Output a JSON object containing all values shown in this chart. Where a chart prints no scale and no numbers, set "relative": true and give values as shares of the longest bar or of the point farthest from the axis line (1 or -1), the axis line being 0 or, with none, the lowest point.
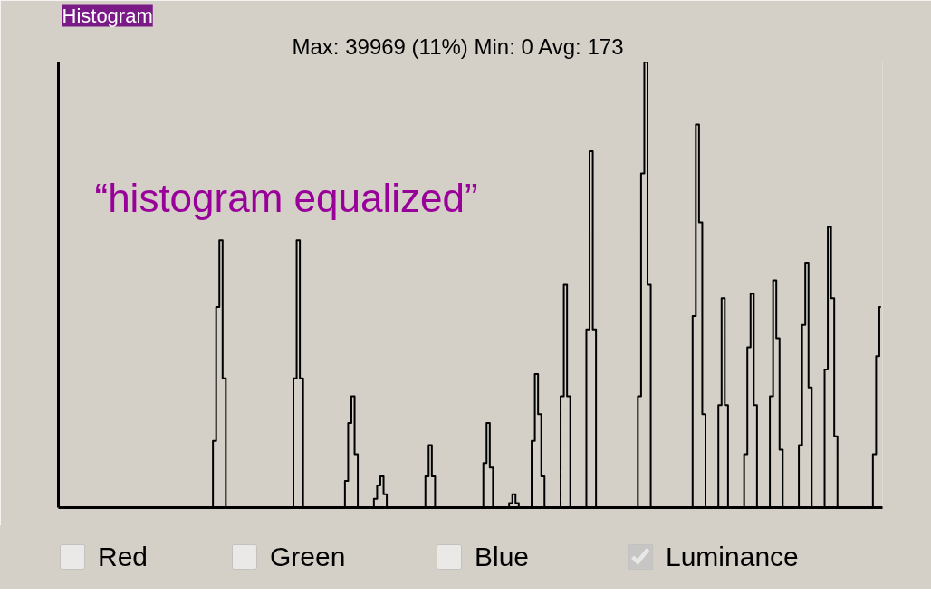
{
  "chart_data": {
    "type": "step",
    "title": "Histogram",
    "subtitle": "Max: 39969 (11%)   Min: 0   Avg: 173",
    "annotations": [
      "“histogram equalized”",
      "Red",
      "Green",
      "Blue"
    ],
    "relative": true,
    "tick_labels": false,
    "grid": false,
    "legend": "bottom",
    "categories": [
      null,
      null,
      null,
      null,
      null,
      null,
      null,
      null,
      null,
      null,
      null,
      null,
      null,
      null,
      null,
      null,
      null,
      null,
      null,
      null,
      null,
      null,
      null,
      null,
      null,
      null,
      null,
      null,
      null,
      null,
      null,
      null,
      null,
      null,
      null,
      null,
      null,
      null,
      null,
      null,
      null,
      null,
      null,
      null,
      null,
      null,
      null,
      null,
      null,
      null,
      null,
      null,
      null,
      null,
      null,
      null,
      null,
      null,
      null,
      null,
      null,
      null,
      null,
      null,
      null,
      null,
      null,
      null,
      null,
      null,
      null,
      null,
      null,
      null,
      null,
      null,
      null,
      null,
      null,
      null,
      null,
      null,
      null,
      null,
      null,
      null,
      null,
      null,
      null,
      null,
      null,
      null,
      null,
      null,
      null,
      null,
      null,
      null,
      null,
      null,
      null,
      null,
      null,
      null,
      null,
      null,
      null,
      null,
      null,
      null,
      null,
      null,
      null,
      null,
      null,
      null,
      null,
      null,
      null,
      null,
      null,
      null,
      null,
      null,
      null,
      null,
      null,
      null,
      null,
      null,
      null,
      null,
      null,
      null,
      null,
      null,
      null,
      null,
      null,
      null,
      null,
      null,
      null,
      null,
      null,
      null,
      null,
      null,
      null,
      null,
      null,
      null,
      null,
      null,
      null,
      null,
      null,
      null,
      null,
      null,
      null,
      null,
      null,
      null,
      null,
      null,
      null,
      null,
      null,
      null,
      null,
      null,
      null,
      null,
      null,
      null,
      null,
      null,
      null,
      null,
      null,
      null,
      null,
      null,
      null,
      null,
      null,
      null,
      null,
      null,
      null,
      null,
      null,
      null,
      null,
      null,
      null,
      null,
      null,
      null,
      null,
      null,
      null,
      null,
      null,
      null,
      null,
      null,
      null,
      null,
      null,
      null,
      null,
      null,
      null,
      null,
      null,
      null,
      null,
      null,
      null,
      null,
      null,
      null,
      null,
      null,
      null,
      null,
      null,
      null,
      null,
      null,
      null,
      null,
      null,
      null,
      null,
      null,
      null,
      null,
      null,
      null,
      null,
      null,
      null,
      null,
      null,
      null,
      null,
      null,
      null,
      null,
      null,
      null,
      null,
      null
    ],
    "series": [
      {
        "name": "Luminance",
        "color": "#000000",
        "values": [
          0,
          0,
          0,
          0,
          0,
          0,
          0,
          0,
          0,
          0,
          0,
          0,
          0,
          0,
          0,
          0,
          0,
          0,
          0,
          0,
          0,
          0,
          0,
          0,
          0,
          0,
          0,
          0,
          0,
          0,
          0,
          0,
          0,
          0,
          0,
          0,
          0,
          0,
          0,
          0,
          0,
          0,
          0,
          0,
          0,
          0,
          0,
          0,
          0.15,
          0.45,
          0.6,
          0.29,
          0,
          0,
          0,
          0,
          0,
          0,
          0,
          0,
          0,
          0,
          0,
          0,
          0,
          0,
          0,
          0,
          0,
          0,
          0,
          0,
          0,
          0.29,
          0.6,
          0.29,
          0,
          0,
          0,
          0,
          0,
          0,
          0,
          0,
          0,
          0,
          0,
          0,
          0,
          0.06,
          0.19,
          0.25,
          0.12,
          0,
          0,
          0,
          0,
          0,
          0.02,
          0.05,
          0.07,
          0.03,
          0,
          0,
          0,
          0,
          0,
          0,
          0,
          0,
          0,
          0,
          0,
          0,
          0.07,
          0.14,
          0.07,
          0,
          0,
          0,
          0,
          0,
          0,
          0,
          0,
          0,
          0,
          0,
          0,
          0,
          0,
          0,
          0.1,
          0.19,
          0.09,
          0,
          0,
          0,
          0,
          0,
          0.01,
          0.03,
          0.01,
          0,
          0,
          0,
          0,
          0.15,
          0.3,
          0.21,
          0.07,
          0,
          0,
          0,
          0,
          0,
          0.25,
          0.5,
          0.25,
          0,
          0,
          0,
          0,
          0,
          0.4,
          0.8,
          0.4,
          0,
          0,
          0,
          0,
          0,
          0,
          0,
          0,
          0,
          0,
          0,
          0,
          0,
          0.25,
          0.75,
          1,
          0.5,
          0,
          0,
          0,
          0,
          0,
          0,
          0,
          0,
          0,
          0,
          0,
          0,
          0,
          0.43,
          0.86,
          0.64,
          0.21,
          0,
          0,
          0,
          0,
          0.23,
          0.47,
          0.23,
          0,
          0,
          0,
          0,
          0,
          0.12,
          0.36,
          0.48,
          0.23,
          0,
          0,
          0,
          0,
          0.25,
          0.51,
          0.38,
          0.13,
          0,
          0,
          0,
          0,
          0,
          0.14,
          0.41,
          0.55,
          0.27,
          0,
          0,
          0,
          0,
          0.31,
          0.63,
          0.47,
          0.16,
          0,
          0,
          0,
          0,
          0,
          0,
          0,
          0,
          0,
          0,
          0,
          0.12,
          0.34,
          0.45
        ]
      }
    ]
  }
}
